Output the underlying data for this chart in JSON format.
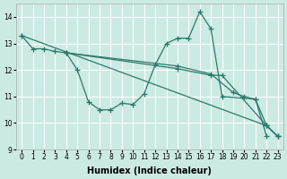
{
  "bg_color": "#cceae4",
  "grid_color": "#ffffff",
  "line_color": "#2a7a6a",
  "marker": "+",
  "markersize": 4,
  "linewidth": 0.9,
  "xlabel": "Humidex (Indice chaleur)",
  "xlabel_fontsize": 7,
  "xlim": [
    -0.5,
    23.5
  ],
  "ylim": [
    9.0,
    14.5
  ],
  "yticks": [
    9,
    10,
    11,
    12,
    13,
    14
  ],
  "xticks": [
    0,
    1,
    2,
    3,
    4,
    5,
    6,
    7,
    8,
    9,
    10,
    11,
    12,
    13,
    14,
    15,
    16,
    17,
    18,
    19,
    20,
    21,
    22,
    23
  ],
  "lines": [
    {
      "x": [
        0,
        1,
        2,
        3,
        4,
        5,
        6,
        7,
        8,
        9,
        10,
        11,
        12,
        13,
        14,
        15,
        16,
        17,
        18,
        21,
        22
      ],
      "y": [
        13.3,
        12.8,
        12.8,
        12.7,
        12.65,
        12.0,
        10.8,
        10.5,
        10.5,
        10.75,
        10.7,
        11.1,
        12.2,
        13.0,
        13.2,
        13.2,
        14.2,
        13.55,
        11.0,
        10.9,
        9.5
      ]
    },
    {
      "x": [
        0,
        22,
        23
      ],
      "y": [
        13.3,
        9.9,
        9.5
      ]
    },
    {
      "x": [
        4,
        14,
        17,
        19,
        20,
        21,
        22,
        23
      ],
      "y": [
        12.65,
        12.15,
        11.85,
        11.15,
        11.0,
        10.9,
        9.9,
        9.5
      ]
    },
    {
      "x": [
        4,
        14,
        17,
        18,
        22,
        23
      ],
      "y": [
        12.65,
        12.05,
        11.8,
        11.8,
        9.9,
        9.5
      ]
    }
  ]
}
